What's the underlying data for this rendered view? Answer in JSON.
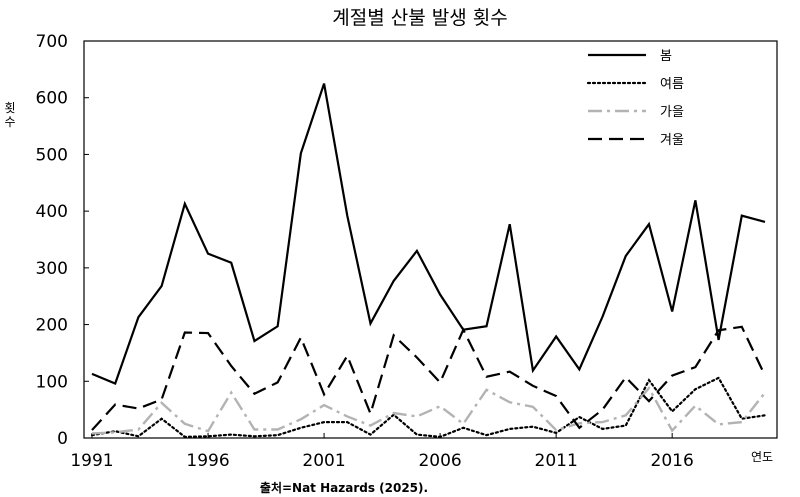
{
  "chart_data": {
    "type": "line",
    "title": "계절별 산불 발생 횟수",
    "ylabel": "횟수",
    "xlabel": "연도",
    "source": "출처=Nat Hazards (2025).",
    "ylim": [
      0,
      700
    ],
    "yticks": [
      "0",
      "100",
      "200",
      "300",
      "400",
      "500",
      "600",
      "700"
    ],
    "xticks": [
      "1991",
      "1996",
      "2001",
      "2006",
      "2011",
      "2016"
    ],
    "xtick_values": [
      1991,
      1996,
      2001,
      2006,
      2011,
      2016
    ],
    "xlim": [
      1991,
      2020
    ],
    "legend_position": "top-right",
    "grid": false,
    "x": [
      1991,
      1992,
      1993,
      1994,
      1995,
      1996,
      1997,
      1998,
      1999,
      2000,
      2001,
      2002,
      2003,
      2004,
      2005,
      2006,
      2007,
      2008,
      2009,
      2010,
      2011,
      2012,
      2013,
      2014,
      2015,
      2016,
      2017,
      2018,
      2019,
      2020
    ],
    "series": [
      {
        "name": "봄",
        "style": "solid",
        "color": "#000000",
        "values": [
          113,
          96,
          213,
          268,
          413,
          325,
          309,
          171,
          197,
          502,
          625,
          392,
          202,
          277,
          330,
          253,
          191,
          197,
          377,
          119,
          179,
          121,
          214,
          321,
          377,
          223,
          419,
          173,
          392,
          381
        ]
      },
      {
        "name": "여름",
        "style": "dotted",
        "color": "#000000",
        "values": [
          5,
          12,
          3,
          34,
          2,
          3,
          6,
          3,
          5,
          18,
          28,
          28,
          6,
          41,
          6,
          2,
          18,
          5,
          16,
          20,
          9,
          37,
          16,
          22,
          102,
          47,
          86,
          106,
          34,
          40
        ]
      },
      {
        "name": "가을",
        "style": "dashdot",
        "color": "#b3b3b3",
        "values": [
          8,
          10,
          15,
          62,
          25,
          12,
          80,
          15,
          15,
          33,
          58,
          38,
          22,
          44,
          38,
          56,
          25,
          85,
          63,
          55,
          14,
          26,
          28,
          40,
          88,
          13,
          57,
          24,
          28,
          80
        ]
      },
      {
        "name": "겨울",
        "style": "dashed",
        "color": "#000000",
        "values": [
          14,
          59,
          52,
          68,
          186,
          185,
          127,
          78,
          98,
          177,
          77,
          145,
          43,
          181,
          142,
          98,
          191,
          108,
          117,
          92,
          74,
          18,
          50,
          107,
          65,
          110,
          125,
          190,
          196,
          110
        ]
      }
    ]
  }
}
